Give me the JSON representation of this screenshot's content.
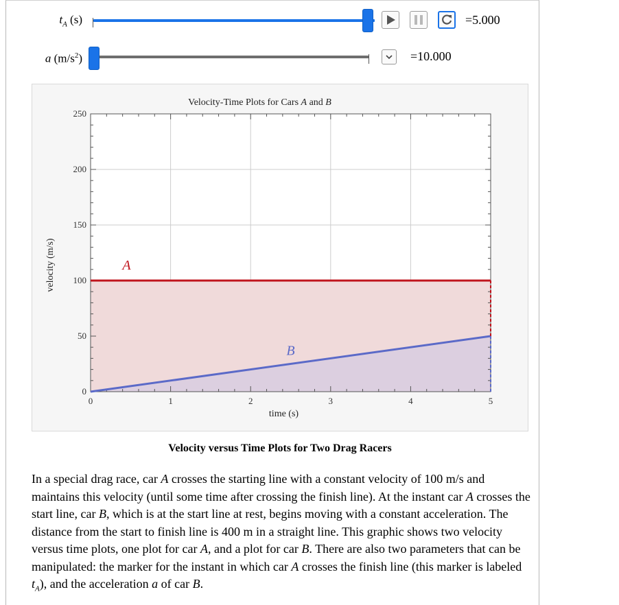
{
  "controls": {
    "tA": {
      "var": "t",
      "sub": "A",
      "unit": " (s)",
      "value_text": "=5.000",
      "fraction": 1.0,
      "buttons": [
        "play-icon",
        "pause-icon",
        "reset-icon"
      ]
    },
    "a": {
      "var": "a",
      "unit_pre": " (m/s",
      "unit_sup": "2",
      "unit_post": ")",
      "value_text": "=10.000",
      "fraction": 0.0,
      "buttons": [
        "chevron-down-icon"
      ]
    }
  },
  "chart_data": {
    "type": "line",
    "title_pre": "Velocity-Time Plots for Cars ",
    "title_a": "A",
    "title_mid": " and ",
    "title_b": "B",
    "xlabel": "time (s)",
    "ylabel": "velocity (m/s)",
    "xlim": [
      0,
      5
    ],
    "ylim": [
      0,
      250
    ],
    "x_ticks": [
      0,
      1,
      2,
      3,
      4,
      5
    ],
    "y_ticks": [
      0,
      50,
      100,
      150,
      200,
      250
    ],
    "grid": true,
    "series": [
      {
        "name": "A",
        "x": [
          0,
          5
        ],
        "y": [
          100,
          100
        ],
        "color": "#c0141c",
        "fill": "#f0dada"
      },
      {
        "name": "B",
        "x": [
          0,
          5
        ],
        "y": [
          0,
          50
        ],
        "color": "#5b6ac8",
        "fill": "#dccfe0"
      }
    ],
    "marker": {
      "x": 5,
      "y_top": 100,
      "y_bottom": 50
    },
    "label_positions": {
      "A": [
        0.45,
        110
      ],
      "B": [
        2.5,
        33
      ]
    }
  },
  "caption": "Velocity versus Time Plots for Two Drag Racers",
  "description": {
    "p1": "In a special drag race, car ",
    "A1": "A",
    "p2": " crosses the starting line with a constant velocity of 100 m/s and maintains this velocity (until some time after crossing the finish line). At the instant car ",
    "A2": "A",
    "p3": " crosses the start line, car ",
    "B1": "B",
    "p4": ", which is at the start line at rest, begins moving with a constant acceleration. The distance from the start to finish line is 400 m in a straight line. This graphic shows two velocity versus time plots, one plot for car ",
    "A3": "A",
    "p5": ", and a plot for car ",
    "B2": "B",
    "p6": ". There are also two parameters that can be manipulated: the marker for the instant in which car ",
    "A4": "A",
    "p7": " crosses the finish line (this marker is labeled ",
    "tvar": "t",
    "tsub": "A",
    "p8": "), and the acceleration ",
    "avar": "a",
    "p9": " of car ",
    "B3": "B",
    "p10": "."
  },
  "colors": {
    "slider_fill": "#1a73e8",
    "slider_track": "#6e6e6e",
    "series_A": "#c0141c",
    "series_B": "#5b6ac8"
  }
}
